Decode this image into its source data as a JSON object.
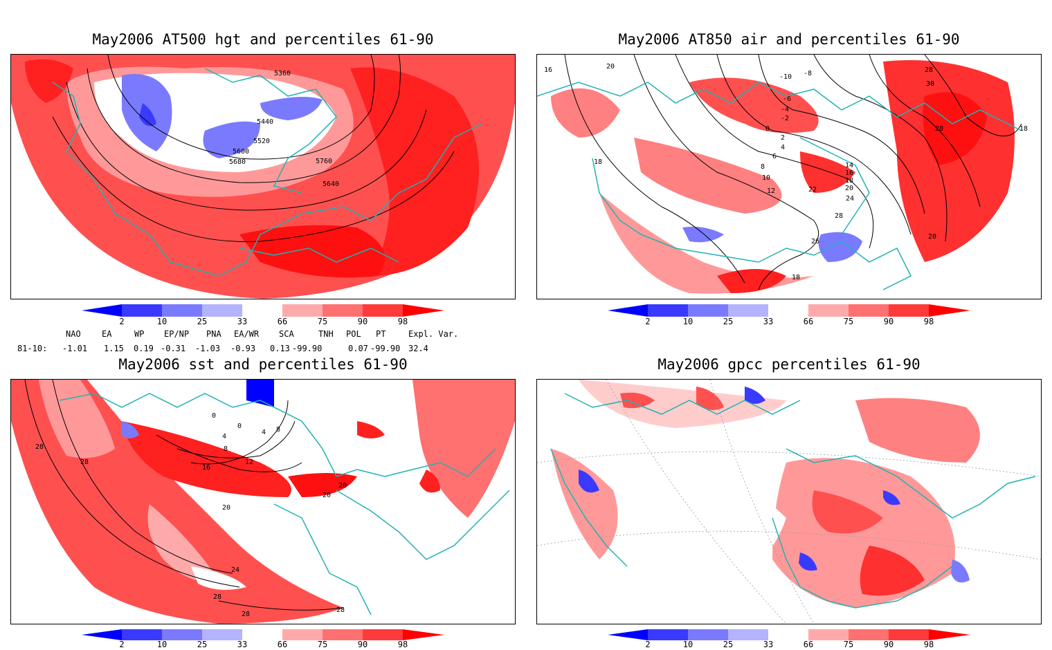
{
  "panels": [
    {
      "title": "May2006 AT500 hgt and percentiles 61-90",
      "contour_labels": [
        "5360",
        "5440",
        "5520",
        "5600",
        "5680",
        "5760",
        "5640"
      ]
    },
    {
      "title": "May2006 AT850 air and percentiles 61-90",
      "contour_labels": [
        "16",
        "20",
        "-10",
        "-8",
        "-6",
        "-4",
        "-2",
        "0",
        "2",
        "4",
        "6",
        "8",
        "10",
        "12",
        "14",
        "16",
        "18",
        "20",
        "22",
        "24",
        "26",
        "28",
        "30",
        "28",
        "18",
        "20",
        "18",
        "28",
        "18"
      ]
    },
    {
      "title": "May2006 sst and percentiles 61-90",
      "contour_labels": [
        "28",
        "28",
        "0",
        "4",
        "0",
        "4",
        "8",
        "8",
        "12",
        "16",
        "20",
        "20",
        "20",
        "24",
        "28",
        "28",
        "28"
      ]
    },
    {
      "title": "May2006 gpcc percentiles 61-90",
      "contour_labels": []
    }
  ],
  "colorbar": {
    "labels": [
      "2",
      "10",
      "25",
      "33",
      "66",
      "75",
      "90",
      "98"
    ],
    "colors": {
      "blue_dark": "#0000ff",
      "blue_mid": "#3a3aff",
      "blue_light": "#7a7aff",
      "blue_pale": "#b3b3ff",
      "red_pale": "#ffaaaa",
      "red_light": "#ff7070",
      "red_mid": "#ff3a3a",
      "red_dark": "#ff0000"
    }
  },
  "teleconnections": {
    "headers": [
      "NAO",
      "EA",
      "WP",
      "EP/NP",
      "PNA",
      "EA/WR",
      "SCA",
      "TNH",
      "POL",
      "PT",
      "Expl. Var."
    ],
    "row_label": "81-10:",
    "values": [
      "-1.01",
      "1.15",
      "0.19",
      "-0.31",
      "-1.03",
      "-0.93",
      "0.13",
      "-99.90",
      "0.07",
      "-99.90",
      "32.4"
    ]
  },
  "colors": {
    "coastline": "#20b2b2",
    "contour": "#000000"
  }
}
